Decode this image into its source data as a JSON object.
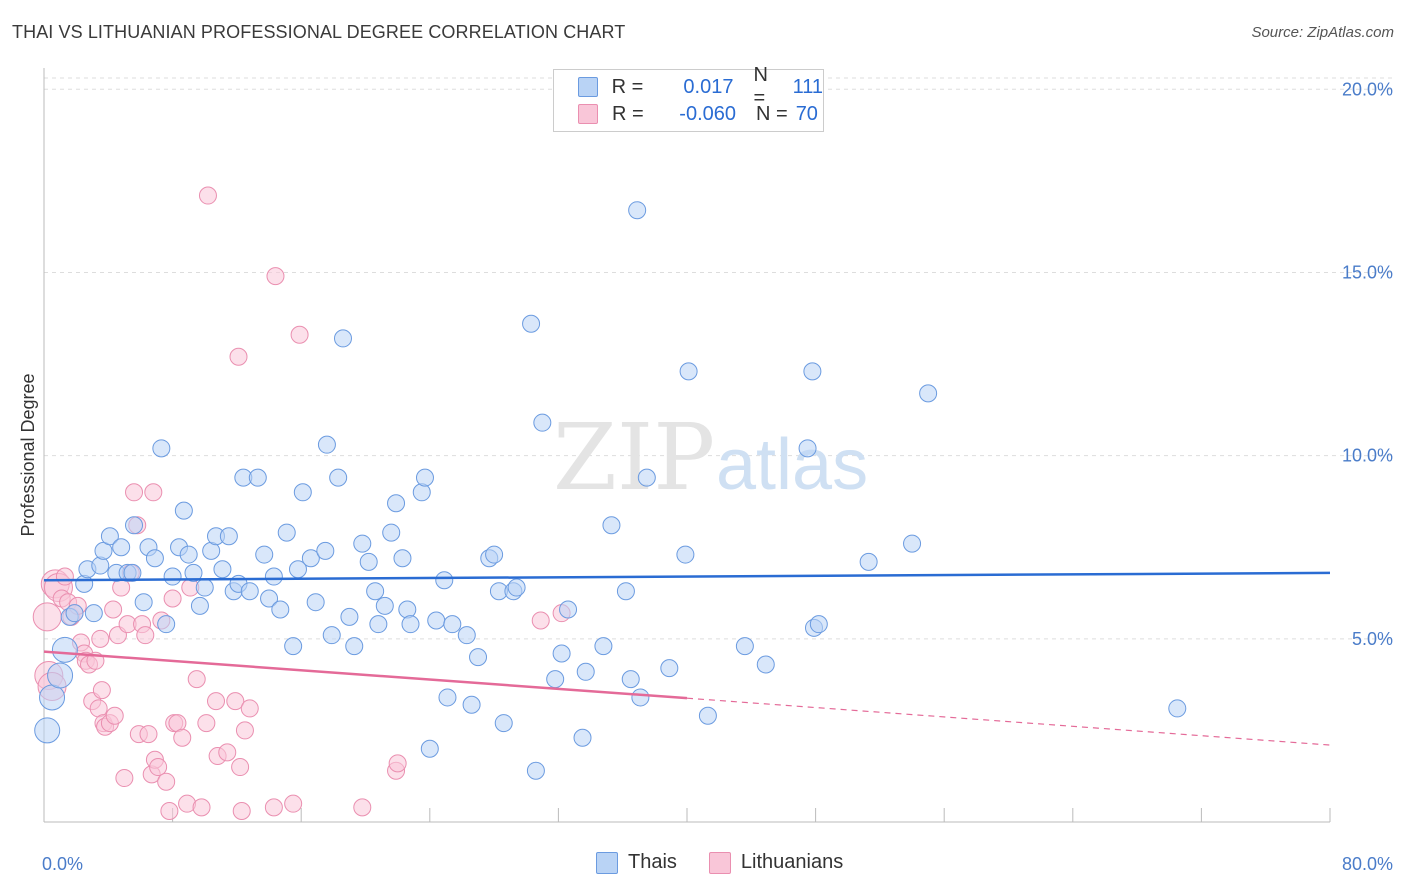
{
  "header": {
    "title": "THAI VS LITHUANIAN PROFESSIONAL DEGREE CORRELATION CHART",
    "source": "Source: ZipAtlas.com"
  },
  "legend": {
    "rows": [
      {
        "r_label": "R =",
        "r_value": "0.017",
        "n_label": "N =",
        "n_value": "111"
      },
      {
        "r_label": "R =",
        "r_value": "-0.060",
        "n_label": "N =",
        "n_value": "70"
      }
    ]
  },
  "bottom_legend": {
    "thais": "Thais",
    "lithuanians": "Lithuanians"
  },
  "watermark": {
    "zip": "ZIP",
    "atlas": "atlas"
  },
  "colors": {
    "thai_fill": "#b9d3f5",
    "thai_stroke": "#6b9be0",
    "thai_line": "#2a6cd3",
    "lith_fill": "#f9c6d8",
    "lith_stroke": "#ea8fb0",
    "lith_line": "#e46a98",
    "tick": "#4a7cc9",
    "grid": "#dddddd"
  },
  "chart_data": {
    "type": "scatter",
    "title": "THAI VS LITHUANIAN PROFESSIONAL DEGREE CORRELATION CHART",
    "ylabel": "Professional Degree",
    "xlabel": "",
    "xlim": [
      0,
      80
    ],
    "ylim": [
      0,
      20.8
    ],
    "x_tick_labels": [
      {
        "value": 0,
        "label": "0.0%"
      },
      {
        "value": 80,
        "label": "80.0%"
      }
    ],
    "y_ticks": [
      {
        "value": 5,
        "label": "5.0%"
      },
      {
        "value": 10,
        "label": "10.0%"
      },
      {
        "value": 15,
        "label": "15.0%"
      },
      {
        "value": 20,
        "label": "20.0%"
      }
    ],
    "grid": true,
    "legend_placement": "top-center",
    "series": [
      {
        "name": "Thais",
        "r": 0.017,
        "n": 111,
        "trend": {
          "x": [
            0,
            80
          ],
          "y": [
            6.6,
            6.8
          ]
        },
        "points": [
          [
            0.2,
            2.5
          ],
          [
            0.5,
            3.4
          ],
          [
            1,
            4.0
          ],
          [
            1.3,
            4.7
          ],
          [
            1.6,
            5.6
          ],
          [
            1.9,
            5.7
          ],
          [
            2.5,
            6.5
          ],
          [
            2.7,
            6.9
          ],
          [
            3.1,
            5.7
          ],
          [
            3.5,
            7.0
          ],
          [
            3.7,
            7.4
          ],
          [
            4.1,
            7.8
          ],
          [
            4.5,
            6.8
          ],
          [
            4.8,
            7.5
          ],
          [
            5.2,
            6.8
          ],
          [
            5.5,
            6.8
          ],
          [
            5.6,
            8.1
          ],
          [
            6.2,
            6.0
          ],
          [
            6.5,
            7.5
          ],
          [
            6.9,
            7.2
          ],
          [
            7.3,
            10.2
          ],
          [
            7.6,
            5.4
          ],
          [
            8,
            6.7
          ],
          [
            8.4,
            7.5
          ],
          [
            8.7,
            8.5
          ],
          [
            9,
            7.3
          ],
          [
            9.3,
            6.8
          ],
          [
            9.7,
            5.9
          ],
          [
            10,
            6.4
          ],
          [
            10.4,
            7.4
          ],
          [
            10.7,
            7.8
          ],
          [
            11.1,
            6.9
          ],
          [
            11.5,
            7.8
          ],
          [
            11.8,
            6.3
          ],
          [
            12.1,
            6.5
          ],
          [
            12.4,
            9.4
          ],
          [
            12.8,
            6.3
          ],
          [
            13.3,
            9.4
          ],
          [
            13.7,
            7.3
          ],
          [
            14,
            6.1
          ],
          [
            14.3,
            6.7
          ],
          [
            14.7,
            5.8
          ],
          [
            15.1,
            7.9
          ],
          [
            15.5,
            4.8
          ],
          [
            15.8,
            6.9
          ],
          [
            16.1,
            9.0
          ],
          [
            16.6,
            7.2
          ],
          [
            16.9,
            6.0
          ],
          [
            17.5,
            7.4
          ],
          [
            17.6,
            10.3
          ],
          [
            17.9,
            5.1
          ],
          [
            18.3,
            9.4
          ],
          [
            18.6,
            13.2
          ],
          [
            19,
            5.6
          ],
          [
            19.3,
            4.8
          ],
          [
            19.8,
            7.6
          ],
          [
            20.2,
            7.1
          ],
          [
            20.6,
            6.3
          ],
          [
            20.8,
            5.4
          ],
          [
            21.2,
            5.9
          ],
          [
            21.6,
            7.9
          ],
          [
            21.9,
            8.7
          ],
          [
            22.3,
            7.2
          ],
          [
            22.6,
            5.8
          ],
          [
            22.8,
            5.4
          ],
          [
            23.5,
            9.0
          ],
          [
            23.7,
            9.4
          ],
          [
            24,
            2.0
          ],
          [
            24.4,
            5.5
          ],
          [
            24.9,
            6.6
          ],
          [
            25.1,
            3.4
          ],
          [
            25.4,
            5.4
          ],
          [
            26.3,
            5.1
          ],
          [
            26.6,
            3.2
          ],
          [
            27,
            4.5
          ],
          [
            27.7,
            7.2
          ],
          [
            28,
            7.3
          ],
          [
            28.3,
            6.3
          ],
          [
            28.6,
            2.7
          ],
          [
            29.2,
            6.3
          ],
          [
            29.4,
            6.4
          ],
          [
            30.3,
            13.6
          ],
          [
            30.6,
            1.4
          ],
          [
            31,
            10.9
          ],
          [
            31.8,
            3.9
          ],
          [
            32.2,
            4.6
          ],
          [
            32.6,
            5.8
          ],
          [
            33.5,
            2.3
          ],
          [
            33.7,
            4.1
          ],
          [
            34.8,
            4.8
          ],
          [
            35.3,
            8.1
          ],
          [
            36.2,
            6.3
          ],
          [
            36.5,
            3.9
          ],
          [
            36.9,
            16.7
          ],
          [
            37.1,
            3.4
          ],
          [
            37.5,
            9.4
          ],
          [
            38.9,
            4.2
          ],
          [
            39.9,
            7.3
          ],
          [
            40.1,
            12.3
          ],
          [
            41.3,
            2.9
          ],
          [
            43.6,
            4.8
          ],
          [
            44.9,
            4.3
          ],
          [
            47.5,
            10.2
          ],
          [
            47.8,
            12.3
          ],
          [
            47.9,
            5.3
          ],
          [
            48.2,
            5.4
          ],
          [
            51.3,
            7.1
          ],
          [
            54,
            7.6
          ],
          [
            55,
            11.7
          ],
          [
            70.5,
            3.1
          ]
        ]
      },
      {
        "name": "Lithuanians",
        "r": -0.06,
        "n": 70,
        "trend": {
          "x": [
            0,
            40
          ],
          "y": [
            4.65,
            3.38
          ]
        },
        "trend_dashed": {
          "x": [
            40,
            80
          ],
          "y": [
            3.38,
            2.1
          ]
        },
        "points": [
          [
            0.2,
            5.6
          ],
          [
            0.3,
            4.0
          ],
          [
            0.5,
            3.7
          ],
          [
            0.7,
            6.5
          ],
          [
            0.9,
            6.4
          ],
          [
            1.1,
            6.1
          ],
          [
            1.3,
            6.7
          ],
          [
            1.5,
            6.0
          ],
          [
            1.7,
            5.6
          ],
          [
            1.9,
            5.7
          ],
          [
            2.1,
            5.9
          ],
          [
            2.3,
            4.9
          ],
          [
            2.5,
            4.6
          ],
          [
            2.6,
            4.4
          ],
          [
            2.8,
            4.3
          ],
          [
            3.0,
            3.3
          ],
          [
            3.2,
            4.4
          ],
          [
            3.4,
            3.1
          ],
          [
            3.5,
            5.0
          ],
          [
            3.6,
            3.6
          ],
          [
            3.7,
            2.7
          ],
          [
            3.8,
            2.6
          ],
          [
            4.1,
            2.7
          ],
          [
            4.3,
            5.8
          ],
          [
            4.4,
            2.9
          ],
          [
            4.6,
            5.1
          ],
          [
            4.8,
            6.4
          ],
          [
            5.0,
            1.2
          ],
          [
            5.2,
            5.4
          ],
          [
            5.4,
            6.8
          ],
          [
            5.6,
            9.0
          ],
          [
            5.8,
            8.1
          ],
          [
            5.9,
            2.4
          ],
          [
            6.1,
            5.4
          ],
          [
            6.3,
            5.1
          ],
          [
            6.5,
            2.4
          ],
          [
            6.7,
            1.3
          ],
          [
            6.8,
            9.0
          ],
          [
            6.9,
            1.7
          ],
          [
            7.1,
            1.5
          ],
          [
            7.3,
            5.5
          ],
          [
            7.6,
            1.1
          ],
          [
            7.8,
            0.3
          ],
          [
            8.0,
            6.1
          ],
          [
            8.1,
            2.7
          ],
          [
            8.3,
            2.7
          ],
          [
            8.6,
            2.3
          ],
          [
            8.9,
            0.5
          ],
          [
            9.1,
            6.4
          ],
          [
            9.5,
            3.9
          ],
          [
            9.8,
            0.4
          ],
          [
            10.1,
            2.7
          ],
          [
            10.2,
            17.1
          ],
          [
            10.7,
            3.3
          ],
          [
            10.8,
            1.8
          ],
          [
            11.4,
            1.9
          ],
          [
            11.9,
            3.3
          ],
          [
            12.1,
            12.7
          ],
          [
            12.2,
            1.5
          ],
          [
            12.3,
            0.3
          ],
          [
            12.5,
            2.5
          ],
          [
            12.8,
            3.1
          ],
          [
            14.3,
            0.4
          ],
          [
            14.4,
            14.9
          ],
          [
            15.5,
            0.5
          ],
          [
            15.9,
            13.3
          ],
          [
            19.8,
            0.4
          ],
          [
            21.9,
            1.4
          ],
          [
            22.0,
            1.6
          ],
          [
            30.9,
            5.5
          ],
          [
            32.2,
            5.7
          ]
        ]
      }
    ]
  }
}
